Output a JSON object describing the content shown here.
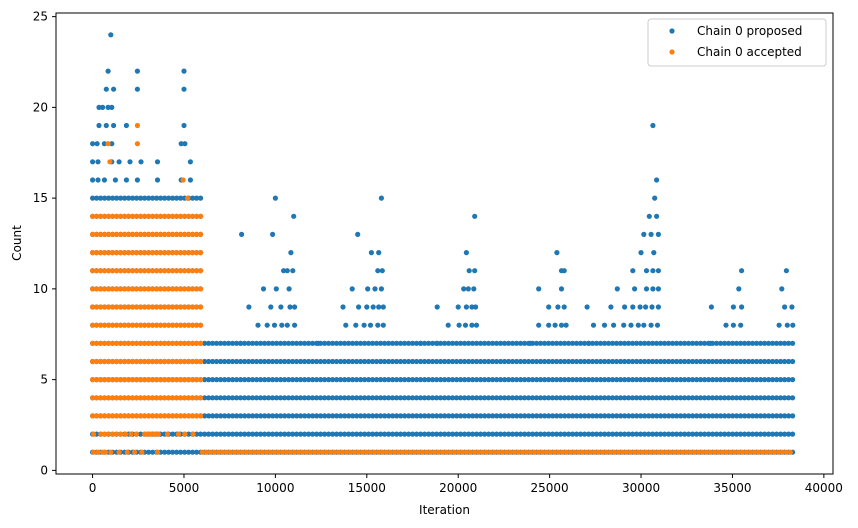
{
  "chart_data": {
    "type": "scatter",
    "title": "",
    "xlabel": "Iteration",
    "ylabel": "Count",
    "xlim": [
      -2000,
      40500
    ],
    "ylim": [
      -0.2,
      25.2
    ],
    "xticks": [
      0,
      5000,
      10000,
      15000,
      20000,
      25000,
      30000,
      35000,
      40000
    ],
    "xtick_labels": [
      "0",
      "5000",
      "10000",
      "15000",
      "20000",
      "25000",
      "30000",
      "35000",
      "40000"
    ],
    "yticks": [
      0,
      5,
      10,
      15,
      20,
      25
    ],
    "ytick_labels": [
      "0",
      "5",
      "10",
      "15",
      "20",
      "25"
    ],
    "grid": false,
    "legend_position": "top-right",
    "series": [
      {
        "name": "Chain 0 proposed",
        "color": "#1f77b4",
        "points": [
          [
            1000,
            24
          ],
          [
            850,
            22
          ],
          [
            2450,
            22
          ],
          [
            5000,
            22
          ],
          [
            750,
            21
          ],
          [
            1150,
            21
          ],
          [
            2450,
            21
          ],
          [
            5000,
            21
          ],
          [
            350,
            20
          ],
          [
            550,
            20
          ],
          [
            850,
            20
          ],
          [
            1050,
            20
          ],
          [
            350,
            19
          ],
          [
            750,
            19
          ],
          [
            1150,
            19
          ],
          [
            1850,
            19
          ],
          [
            5000,
            19
          ],
          [
            30650,
            19
          ],
          [
            0,
            18
          ],
          [
            250,
            18
          ],
          [
            650,
            18
          ],
          [
            1050,
            18
          ],
          [
            4850,
            18
          ],
          [
            5050,
            18
          ],
          [
            0,
            17
          ],
          [
            300,
            17
          ],
          [
            1050,
            17
          ],
          [
            1450,
            17
          ],
          [
            2050,
            17
          ],
          [
            2650,
            17
          ],
          [
            3550,
            17
          ],
          [
            5350,
            17
          ],
          [
            0,
            16
          ],
          [
            300,
            16
          ],
          [
            650,
            16
          ],
          [
            1250,
            16
          ],
          [
            1850,
            16
          ],
          [
            2450,
            16
          ],
          [
            3550,
            16
          ],
          [
            4850,
            16
          ],
          [
            5350,
            16
          ],
          [
            30850,
            16
          ],
          [
            10000,
            15
          ],
          [
            15800,
            15
          ],
          [
            30750,
            15
          ],
          [
            11000,
            14
          ],
          [
            20900,
            14
          ],
          [
            30450,
            14
          ],
          [
            30850,
            14
          ],
          [
            8150,
            13
          ],
          [
            9850,
            13
          ],
          [
            14500,
            13
          ],
          [
            30150,
            13
          ],
          [
            30550,
            13
          ],
          [
            30950,
            13
          ],
          [
            10850,
            12
          ],
          [
            15250,
            12
          ],
          [
            15650,
            12
          ],
          [
            20450,
            12
          ],
          [
            25400,
            12
          ],
          [
            30000,
            12
          ],
          [
            30700,
            12
          ],
          [
            10450,
            11
          ],
          [
            10650,
            11
          ],
          [
            10950,
            11
          ],
          [
            15600,
            11
          ],
          [
            15850,
            11
          ],
          [
            20600,
            11
          ],
          [
            20900,
            11
          ],
          [
            25650,
            11
          ],
          [
            25800,
            11
          ],
          [
            29550,
            11
          ],
          [
            30300,
            11
          ],
          [
            30650,
            11
          ],
          [
            30950,
            11
          ],
          [
            35500,
            11
          ],
          [
            37950,
            11
          ],
          [
            9350,
            10
          ],
          [
            10050,
            10
          ],
          [
            10750,
            10
          ],
          [
            14200,
            10
          ],
          [
            15050,
            10
          ],
          [
            15450,
            10
          ],
          [
            15800,
            10
          ],
          [
            20300,
            10
          ],
          [
            20550,
            10
          ],
          [
            20850,
            10
          ],
          [
            24400,
            10
          ],
          [
            25650,
            10
          ],
          [
            28700,
            10
          ],
          [
            29650,
            10
          ],
          [
            30300,
            10
          ],
          [
            30650,
            10
          ],
          [
            30950,
            10
          ],
          [
            35350,
            10
          ],
          [
            37700,
            10
          ],
          [
            8550,
            9
          ],
          [
            9750,
            9
          ],
          [
            10300,
            9
          ],
          [
            10800,
            9
          ],
          [
            11050,
            9
          ],
          [
            13700,
            9
          ],
          [
            14550,
            9
          ],
          [
            15000,
            9
          ],
          [
            15350,
            9
          ],
          [
            15650,
            9
          ],
          [
            15900,
            9
          ],
          [
            18850,
            9
          ],
          [
            20000,
            9
          ],
          [
            20450,
            9
          ],
          [
            20750,
            9
          ],
          [
            20950,
            9
          ],
          [
            24950,
            9
          ],
          [
            25450,
            9
          ],
          [
            25800,
            9
          ],
          [
            27050,
            9
          ],
          [
            28350,
            9
          ],
          [
            29100,
            9
          ],
          [
            29550,
            9
          ],
          [
            29950,
            9
          ],
          [
            30250,
            9
          ],
          [
            30600,
            9
          ],
          [
            30950,
            9
          ],
          [
            33850,
            9
          ],
          [
            35050,
            9
          ],
          [
            35500,
            9
          ],
          [
            37850,
            9
          ],
          [
            38250,
            9
          ],
          [
            9050,
            8
          ],
          [
            9550,
            8
          ],
          [
            9950,
            8
          ],
          [
            10350,
            8
          ],
          [
            10650,
            8
          ],
          [
            11050,
            8
          ],
          [
            13850,
            8
          ],
          [
            14400,
            8
          ],
          [
            14850,
            8
          ],
          [
            15200,
            8
          ],
          [
            15600,
            8
          ],
          [
            15900,
            8
          ],
          [
            19450,
            8
          ],
          [
            20050,
            8
          ],
          [
            20400,
            8
          ],
          [
            20750,
            8
          ],
          [
            21000,
            8
          ],
          [
            24400,
            8
          ],
          [
            24950,
            8
          ],
          [
            25300,
            8
          ],
          [
            25650,
            8
          ],
          [
            25900,
            8
          ],
          [
            27400,
            8
          ],
          [
            28000,
            8
          ],
          [
            28500,
            8
          ],
          [
            29050,
            8
          ],
          [
            29450,
            8
          ],
          [
            29850,
            8
          ],
          [
            30150,
            8
          ],
          [
            30550,
            8
          ],
          [
            30900,
            8
          ],
          [
            34650,
            8
          ],
          [
            35050,
            8
          ],
          [
            35450,
            8
          ],
          [
            37550,
            8
          ],
          [
            38000,
            8
          ],
          [
            38300,
            8
          ],
          [
            8100,
            7
          ],
          [
            12350,
            7
          ],
          [
            17950,
            7
          ],
          [
            18850,
            7
          ],
          [
            23950,
            7
          ],
          [
            27150,
            7
          ],
          [
            33800,
            7
          ]
        ],
        "dense_rows": [
          {
            "y": 1,
            "x_range": [
              0,
              38300
            ]
          },
          {
            "y": 2,
            "x_range": [
              0,
              38300
            ]
          },
          {
            "y": 3,
            "x_range": [
              0,
              38300
            ]
          },
          {
            "y": 4,
            "x_range": [
              0,
              38300
            ]
          },
          {
            "y": 5,
            "x_range": [
              0,
              38300
            ]
          },
          {
            "y": 6,
            "x_range": [
              0,
              38300
            ]
          },
          {
            "y": 7,
            "x_range": [
              0,
              38300
            ]
          },
          {
            "y": 8,
            "x_range": [
              0,
              6000
            ]
          },
          {
            "y": 9,
            "x_range": [
              0,
              6000
            ]
          },
          {
            "y": 10,
            "x_range": [
              0,
              6000
            ]
          },
          {
            "y": 11,
            "x_range": [
              0,
              6000
            ]
          },
          {
            "y": 12,
            "x_range": [
              0,
              6000
            ]
          },
          {
            "y": 13,
            "x_range": [
              0,
              6000
            ]
          },
          {
            "y": 14,
            "x_range": [
              0,
              6000
            ]
          },
          {
            "y": 15,
            "x_range": [
              0,
              6000
            ]
          }
        ]
      },
      {
        "name": "Chain 0 accepted",
        "color": "#ff7f0e",
        "points": [
          [
            2450,
            19
          ],
          [
            850,
            18
          ],
          [
            2450,
            18
          ],
          [
            950,
            17
          ],
          [
            4950,
            16
          ],
          [
            5200,
            15
          ],
          [
            50,
            1
          ],
          [
            300,
            1
          ],
          [
            550,
            1
          ],
          [
            700,
            1
          ],
          [
            1000,
            1
          ],
          [
            1450,
            1
          ],
          [
            1900,
            1
          ],
          [
            2300,
            1
          ],
          [
            2700,
            1
          ],
          [
            3550,
            1
          ],
          [
            50,
            2
          ],
          [
            450,
            2
          ],
          [
            650,
            2
          ],
          [
            850,
            2
          ],
          [
            1100,
            2
          ],
          [
            1300,
            2
          ],
          [
            1550,
            2
          ],
          [
            1800,
            2
          ],
          [
            2100,
            2
          ],
          [
            2400,
            2
          ],
          [
            2850,
            2
          ],
          [
            3000,
            2
          ],
          [
            3200,
            2
          ],
          [
            3400,
            2
          ],
          [
            3600,
            2
          ],
          [
            4100,
            2
          ],
          [
            4700,
            2
          ],
          [
            5050,
            2
          ],
          [
            5500,
            2
          ]
        ],
        "dense_rows": [
          {
            "y": 1,
            "x_range": [
              6000,
              38300
            ]
          },
          {
            "y": 3,
            "x_range": [
              0,
              6000
            ]
          },
          {
            "y": 4,
            "x_range": [
              0,
              6000
            ]
          },
          {
            "y": 5,
            "x_range": [
              0,
              6000
            ]
          },
          {
            "y": 6,
            "x_range": [
              0,
              6000
            ]
          },
          {
            "y": 7,
            "x_range": [
              0,
              6000
            ]
          },
          {
            "y": 8,
            "x_range": [
              0,
              6000
            ]
          },
          {
            "y": 9,
            "x_range": [
              0,
              6000
            ]
          },
          {
            "y": 10,
            "x_range": [
              0,
              6000
            ]
          },
          {
            "y": 11,
            "x_range": [
              0,
              6000
            ]
          },
          {
            "y": 12,
            "x_range": [
              0,
              6000
            ]
          },
          {
            "y": 13,
            "x_range": [
              0,
              6000
            ]
          },
          {
            "y": 14,
            "x_range": [
              0,
              6000
            ]
          }
        ]
      }
    ]
  }
}
